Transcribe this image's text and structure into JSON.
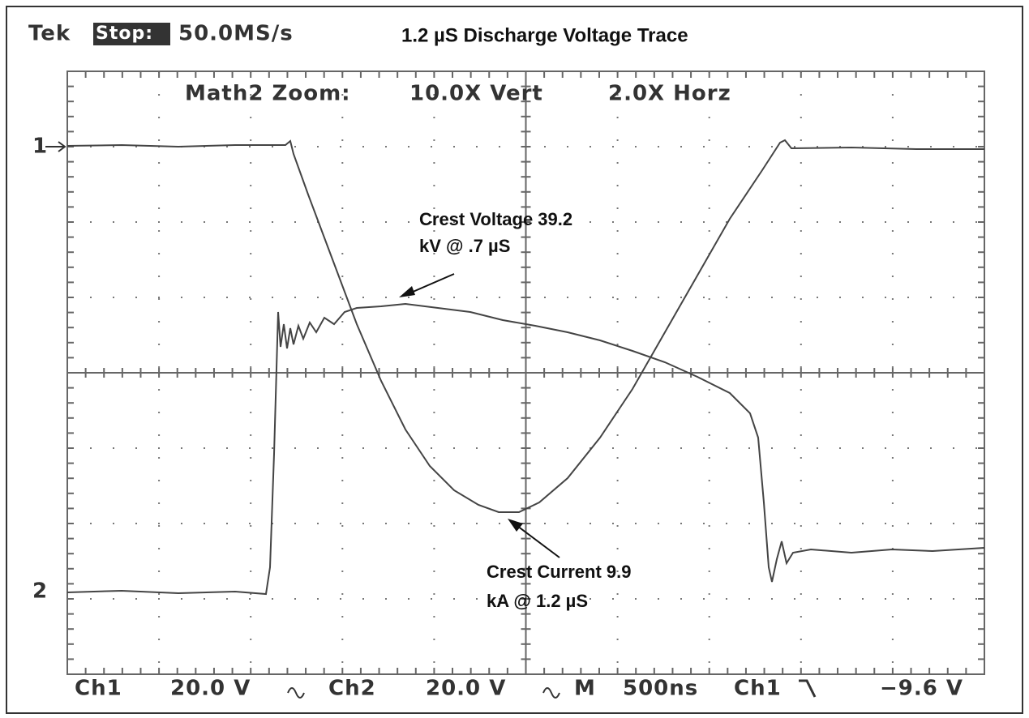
{
  "header": {
    "brand": "Tek",
    "state": "Stop:",
    "rate": "50.0MS/s",
    "title": "1.2 µS Discharge Voltage Trace"
  },
  "zoom": {
    "label": "Math2 Zoom:",
    "vert": "10.0X Vert",
    "horz": "2.0X Horz"
  },
  "markers": {
    "ch1": "1",
    "ch2": "2"
  },
  "annotations": {
    "voltage": [
      "Crest Voltage 39.2",
      "kV @ .7 µS"
    ],
    "current": [
      "Crest Current 9.9",
      "kA @ 1.2 µS"
    ]
  },
  "footer": {
    "ch1": "Ch1",
    "ch1_scale": "20.0 V",
    "ch2": "Ch2",
    "ch2_scale": "20.0 V",
    "mode": "M",
    "timebase": "500ns",
    "trigger_source": "Ch1",
    "trigger_level": "−9.6 V"
  }
}
